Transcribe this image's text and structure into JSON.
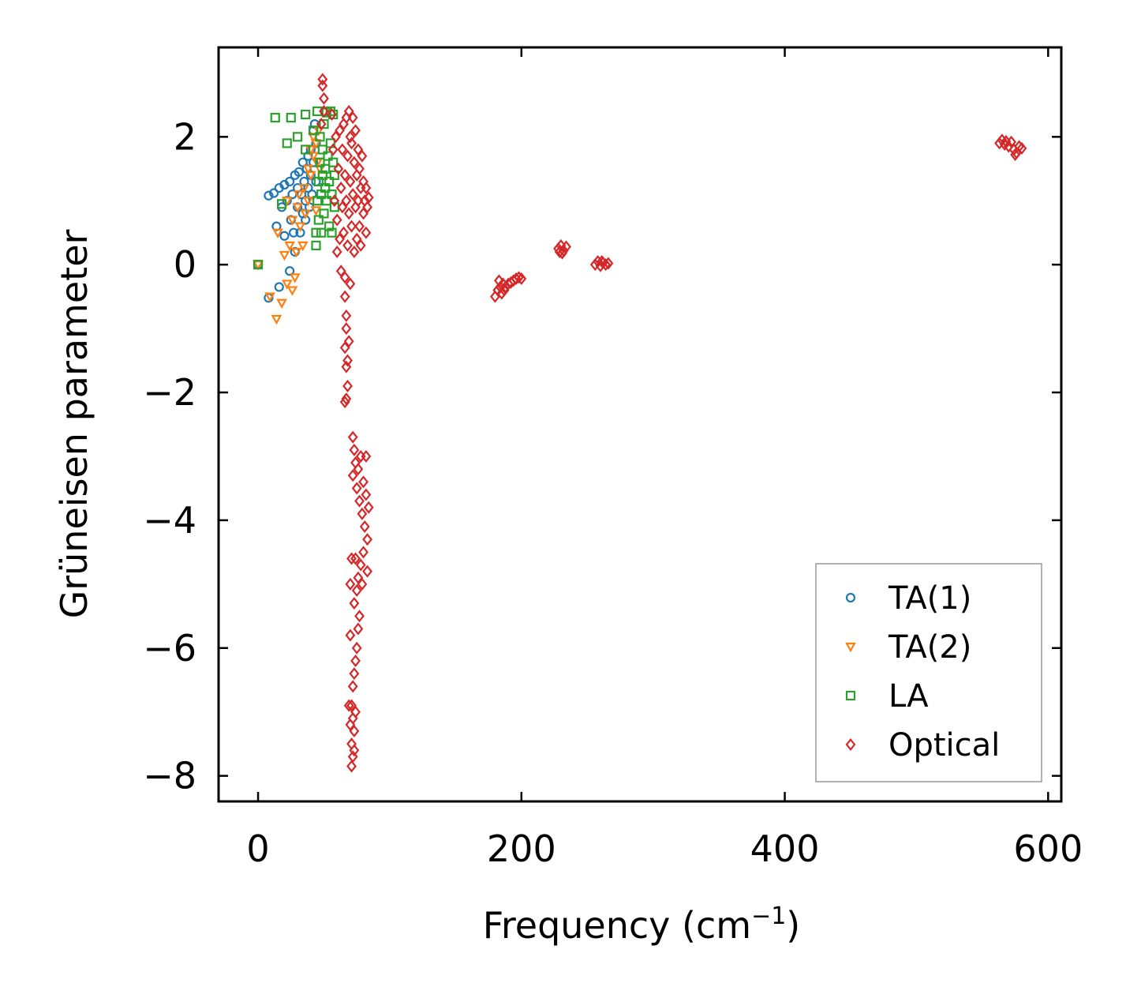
{
  "chart_data": {
    "type": "scatter",
    "title": "",
    "xlabel": "Frequency (cm",
    "xlabel_sup": "−1",
    "xlabel_end": ")",
    "ylabel": "Grüneisen parameter",
    "xlim": [
      -30,
      610
    ],
    "ylim": [
      -8.4,
      3.4
    ],
    "xticks": [
      0,
      200,
      400,
      600
    ],
    "xtick_labels": [
      "0",
      "200",
      "400",
      "600"
    ],
    "yticks": [
      2,
      0,
      -2,
      -4,
      -6,
      -8
    ],
    "ytick_labels": [
      "2",
      "0",
      "−2",
      "−4",
      "−6",
      "−8"
    ],
    "grid": false,
    "legend_position": "bottom-right",
    "series": [
      {
        "name": "TA(1)",
        "marker": "circle",
        "color": "#1f77b4",
        "points": [
          [
            0,
            0
          ],
          [
            8,
            -0.52
          ],
          [
            8,
            1.08
          ],
          [
            12,
            1.12
          ],
          [
            14,
            0.6
          ],
          [
            16,
            -0.35
          ],
          [
            16,
            1.2
          ],
          [
            18,
            0.9
          ],
          [
            20,
            1.25
          ],
          [
            20,
            0.45
          ],
          [
            22,
            1.0
          ],
          [
            24,
            1.3
          ],
          [
            24,
            -0.1
          ],
          [
            25,
            0.7
          ],
          [
            26,
            1.1
          ],
          [
            27,
            0.5
          ],
          [
            28,
            1.4
          ],
          [
            28,
            0.2
          ],
          [
            30,
            0.9
          ],
          [
            30,
            1.2
          ],
          [
            31,
            1.45
          ],
          [
            32,
            0.5
          ],
          [
            33,
            1.1
          ],
          [
            34,
            0.8
          ],
          [
            34,
            1.6
          ],
          [
            35,
            1.3
          ],
          [
            36,
            1.0
          ],
          [
            36,
            0.7
          ],
          [
            37,
            1.5
          ],
          [
            38,
            1.2
          ],
          [
            38,
            1.7
          ],
          [
            39,
            0.9
          ],
          [
            40,
            1.4
          ],
          [
            40,
            1.8
          ],
          [
            41,
            1.1
          ],
          [
            42,
            2.1
          ],
          [
            42,
            1.6
          ],
          [
            43,
            2.2
          ],
          [
            44,
            1.3
          ],
          [
            44,
            1.9
          ]
        ]
      },
      {
        "name": "TA(2)",
        "marker": "triangle",
        "color": "#ff7f0e",
        "points": [
          [
            0,
            0
          ],
          [
            9,
            -0.5
          ],
          [
            14,
            -0.85
          ],
          [
            15,
            0.5
          ],
          [
            18,
            -0.6
          ],
          [
            20,
            0.15
          ],
          [
            22,
            1.0
          ],
          [
            22,
            -0.3
          ],
          [
            24,
            0.3
          ],
          [
            26,
            -0.4
          ],
          [
            26,
            0.7
          ],
          [
            28,
            -0.2
          ],
          [
            29,
            0.2
          ],
          [
            30,
            0.9
          ],
          [
            31,
            1.1
          ],
          [
            32,
            0.6
          ],
          [
            34,
            0.3
          ],
          [
            35,
            1.2
          ],
          [
            36,
            0.8
          ],
          [
            38,
            1.5
          ],
          [
            38,
            1.0
          ],
          [
            40,
            1.4
          ],
          [
            40,
            1.8
          ],
          [
            42,
            1.7
          ],
          [
            42,
            2.0
          ],
          [
            44,
            0.85
          ],
          [
            44,
            1.9
          ],
          [
            45,
            1.6
          ],
          [
            46,
            2.1
          ],
          [
            47,
            1.5
          ]
        ]
      },
      {
        "name": "LA",
        "marker": "square",
        "color": "#2ca02c",
        "points": [
          [
            0,
            0
          ],
          [
            13,
            2.3
          ],
          [
            18,
            0.95
          ],
          [
            22,
            1.9
          ],
          [
            25,
            2.3
          ],
          [
            30,
            2.0
          ],
          [
            36,
            1.8
          ],
          [
            36,
            2.35
          ],
          [
            42,
            2.1
          ],
          [
            45,
            2.4
          ],
          [
            44,
            0.5
          ],
          [
            44,
            0.3
          ],
          [
            45,
            1.0
          ],
          [
            46,
            1.3
          ],
          [
            46,
            0.7
          ],
          [
            47,
            1.6
          ],
          [
            47,
            2.0
          ],
          [
            48,
            1.1
          ],
          [
            48,
            0.5
          ],
          [
            49,
            1.4
          ],
          [
            49,
            1.8
          ],
          [
            50,
            0.8
          ],
          [
            50,
            2.2
          ],
          [
            51,
            1.5
          ],
          [
            51,
            1.2
          ],
          [
            52,
            2.38
          ],
          [
            52,
            1.0
          ],
          [
            53,
            1.7
          ],
          [
            54,
            1.3
          ],
          [
            54,
            0.6
          ],
          [
            55,
            2.4
          ],
          [
            55,
            1.9
          ],
          [
            56,
            1.1
          ],
          [
            56,
            0.5
          ],
          [
            57,
            1.6
          ],
          [
            57,
            2.35
          ],
          [
            58,
            1.4
          ],
          [
            58,
            0.9
          ]
        ]
      },
      {
        "name": "Optical",
        "marker": "diamond",
        "color": "#d62728",
        "points": [
          [
            49,
            2.9
          ],
          [
            49,
            2.8
          ],
          [
            50,
            2.6
          ],
          [
            50,
            2.4
          ],
          [
            48,
            2.2
          ],
          [
            56,
            2.35
          ],
          [
            57,
            1.8
          ],
          [
            58,
            1.0
          ],
          [
            59,
            2.0
          ],
          [
            60,
            0.7
          ],
          [
            60,
            0.2
          ],
          [
            61,
            1.5
          ],
          [
            62,
            2.1
          ],
          [
            62,
            0.4
          ],
          [
            63,
            1.2
          ],
          [
            63,
            -0.1
          ],
          [
            64,
            1.8
          ],
          [
            64,
            0.9
          ],
          [
            65,
            2.2
          ],
          [
            65,
            0.5
          ],
          [
            66,
            1.4
          ],
          [
            66,
            -0.2
          ],
          [
            67,
            2.3
          ],
          [
            67,
            1.0
          ],
          [
            68,
            0.3
          ],
          [
            68,
            1.7
          ],
          [
            69,
            2.4
          ],
          [
            69,
            0.8
          ],
          [
            70,
            -0.3
          ],
          [
            70,
            1.3
          ],
          [
            70,
            2.0
          ],
          [
            71,
            0.6
          ],
          [
            71,
            1.9
          ],
          [
            72,
            1.1
          ],
          [
            72,
            2.3
          ],
          [
            73,
            0.2
          ],
          [
            73,
            1.6
          ],
          [
            74,
            0.9
          ],
          [
            74,
            2.1
          ],
          [
            75,
            1.4
          ],
          [
            75,
            0.4
          ],
          [
            76,
            1.8
          ],
          [
            76,
            1.0
          ],
          [
            77,
            0.6
          ],
          [
            77,
            1.5
          ],
          [
            78,
            1.2
          ],
          [
            78,
            0.3
          ],
          [
            79,
            1.7
          ],
          [
            80,
            0.8
          ],
          [
            80,
            1.3
          ],
          [
            81,
            1.0
          ],
          [
            82,
            0.5
          ],
          [
            82,
            1.2
          ],
          [
            83,
            0.9
          ],
          [
            84,
            1.05
          ],
          [
            66,
            -0.5
          ],
          [
            67,
            -0.8
          ],
          [
            67,
            -1.0
          ],
          [
            66,
            -1.3
          ],
          [
            67,
            -1.6
          ],
          [
            68,
            -1.9
          ],
          [
            67,
            -2.1
          ],
          [
            66,
            -2.15
          ],
          [
            68,
            -1.5
          ],
          [
            69,
            -1.2
          ],
          [
            72,
            -2.7
          ],
          [
            73,
            -2.9
          ],
          [
            74,
            -3.1
          ],
          [
            72,
            -3.3
          ],
          [
            75,
            -3.5
          ],
          [
            76,
            -3.2
          ],
          [
            77,
            -3.7
          ],
          [
            78,
            -3.0
          ],
          [
            79,
            -3.9
          ],
          [
            80,
            -3.4
          ],
          [
            81,
            -4.1
          ],
          [
            82,
            -3.6
          ],
          [
            83,
            -4.3
          ],
          [
            84,
            -3.8
          ],
          [
            80,
            -4.5
          ],
          [
            78,
            -4.7
          ],
          [
            76,
            -4.9
          ],
          [
            75,
            -5.1
          ],
          [
            74,
            -4.6
          ],
          [
            73,
            -5.3
          ],
          [
            77,
            -5.5
          ],
          [
            79,
            -5.0
          ],
          [
            76,
            -5.7
          ],
          [
            75,
            -6.0
          ],
          [
            74,
            -6.2
          ],
          [
            73,
            -6.4
          ],
          [
            72,
            -6.6
          ],
          [
            71,
            -6.9
          ],
          [
            72,
            -7.1
          ],
          [
            73,
            -7.3
          ],
          [
            71,
            -7.5
          ],
          [
            72,
            -7.7
          ],
          [
            71,
            -7.85
          ],
          [
            70,
            -5.8
          ],
          [
            69,
            -6.9
          ],
          [
            70,
            -7.2
          ],
          [
            74,
            -7.0
          ],
          [
            73,
            -7.6
          ],
          [
            82,
            -3.0
          ],
          [
            83,
            -4.8
          ],
          [
            71,
            -4.6
          ],
          [
            70,
            -5.0
          ],
          [
            180,
            -0.5
          ],
          [
            182,
            -0.4
          ],
          [
            184,
            -0.35
          ],
          [
            186,
            -0.3
          ],
          [
            188,
            -0.35
          ],
          [
            190,
            -0.3
          ],
          [
            192,
            -0.28
          ],
          [
            194,
            -0.25
          ],
          [
            196,
            -0.22
          ],
          [
            198,
            -0.2
          ],
          [
            200,
            -0.22
          ],
          [
            183,
            -0.25
          ],
          [
            185,
            -0.45
          ],
          [
            187,
            -0.4
          ],
          [
            228,
            0.25
          ],
          [
            230,
            0.3
          ],
          [
            232,
            0.22
          ],
          [
            234,
            0.28
          ],
          [
            231,
            0.18
          ],
          [
            229,
            0.2
          ],
          [
            256,
            0.0
          ],
          [
            258,
            0.05
          ],
          [
            260,
            -0.02
          ],
          [
            262,
            0.03
          ],
          [
            264,
            0.0
          ],
          [
            266,
            0.02
          ],
          [
            261,
            0.05
          ],
          [
            563,
            1.9
          ],
          [
            565,
            1.95
          ],
          [
            567,
            1.88
          ],
          [
            570,
            1.85
          ],
          [
            572,
            1.92
          ],
          [
            574,
            1.8
          ],
          [
            576,
            1.75
          ],
          [
            578,
            1.85
          ],
          [
            580,
            1.82
          ],
          [
            575,
            1.72
          ],
          [
            568,
            1.93
          ]
        ]
      }
    ]
  }
}
